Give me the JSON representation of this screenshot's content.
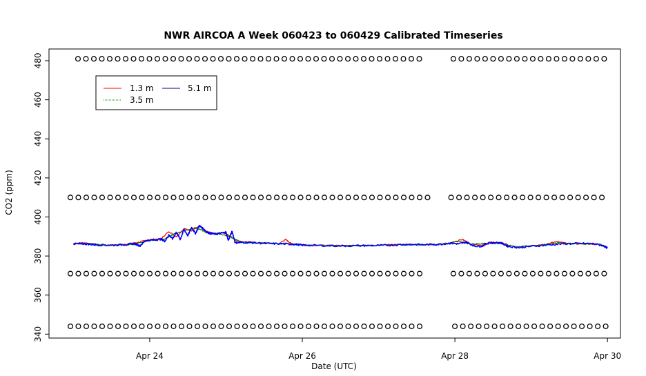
{
  "chart_data": {
    "type": "line",
    "title": "NWR AIRCOA A  Week 060423 to 060429  Calibrated Timeseries",
    "xlabel": "Date (UTC)",
    "ylabel": "CO2 (ppm)",
    "xlim_days": [
      22.68,
      30.17
    ],
    "ylim": [
      338,
      486
    ],
    "x_ticks": [
      {
        "label": "Apr 24",
        "day": 24
      },
      {
        "label": "Apr 26",
        "day": 26
      },
      {
        "label": "Apr 28",
        "day": 28
      },
      {
        "label": "Apr 30",
        "day": 30
      }
    ],
    "y_ticks": [
      340,
      360,
      380,
      400,
      420,
      440,
      460,
      480
    ],
    "grid": false,
    "legend": {
      "placement": "top-left",
      "entries": [
        {
          "label": "1.3 m",
          "color": "#ff0000"
        },
        {
          "label": "5.1 m",
          "color": "#00008b"
        },
        {
          "label": "3.5 m",
          "color": "#008000"
        }
      ]
    },
    "series": [
      {
        "name": "1.3 m",
        "color": "#ff0000",
        "points": [
          [
            23.0,
            386.5
          ],
          [
            23.15,
            386.8
          ],
          [
            23.3,
            385.9
          ],
          [
            23.5,
            385.6
          ],
          [
            23.7,
            386.2
          ],
          [
            23.85,
            387.0
          ],
          [
            24.0,
            388.4
          ],
          [
            24.15,
            388.9
          ],
          [
            24.25,
            392.5
          ],
          [
            24.35,
            390.0
          ],
          [
            24.45,
            394.0
          ],
          [
            24.55,
            393.0
          ],
          [
            24.65,
            395.2
          ],
          [
            24.75,
            392.5
          ],
          [
            24.85,
            391.5
          ],
          [
            24.95,
            392.0
          ],
          [
            25.05,
            390.5
          ],
          [
            25.15,
            387.5
          ],
          [
            25.3,
            387.2
          ],
          [
            25.5,
            386.5
          ],
          [
            25.7,
            386.4
          ],
          [
            25.78,
            388.5
          ],
          [
            25.85,
            386.5
          ],
          [
            26.0,
            385.6
          ],
          [
            26.3,
            385.4
          ],
          [
            26.6,
            385.3
          ],
          [
            26.9,
            385.4
          ],
          [
            27.1,
            385.8
          ],
          [
            27.3,
            386.0
          ],
          [
            27.5,
            385.9
          ],
          [
            27.7,
            385.8
          ],
          [
            27.9,
            386.4
          ],
          [
            28.1,
            388.5
          ],
          [
            28.2,
            386.3
          ],
          [
            28.35,
            385.5
          ],
          [
            28.45,
            387.0
          ],
          [
            28.6,
            386.8
          ],
          [
            28.8,
            384.5
          ],
          [
            29.0,
            385.2
          ],
          [
            29.2,
            386.2
          ],
          [
            29.35,
            387.5
          ],
          [
            29.5,
            386.2
          ],
          [
            29.7,
            386.3
          ],
          [
            29.9,
            386.0
          ],
          [
            30.0,
            384.3
          ]
        ]
      },
      {
        "name": "3.5 m",
        "color": "#008000",
        "points": [
          [
            23.0,
            386.3
          ],
          [
            23.2,
            386.4
          ],
          [
            23.4,
            385.7
          ],
          [
            23.6,
            385.5
          ],
          [
            23.8,
            386.0
          ],
          [
            24.0,
            388.0
          ],
          [
            24.2,
            388.8
          ],
          [
            24.3,
            391.0
          ],
          [
            24.45,
            393.0
          ],
          [
            24.6,
            394.5
          ],
          [
            24.75,
            392.0
          ],
          [
            24.9,
            391.5
          ],
          [
            25.05,
            390.0
          ],
          [
            25.2,
            387.0
          ],
          [
            25.4,
            386.8
          ],
          [
            25.6,
            386.4
          ],
          [
            25.8,
            386.5
          ],
          [
            26.0,
            385.6
          ],
          [
            26.4,
            385.3
          ],
          [
            26.8,
            385.3
          ],
          [
            27.2,
            385.7
          ],
          [
            27.5,
            385.8
          ],
          [
            27.8,
            385.9
          ],
          [
            28.05,
            387.5
          ],
          [
            28.2,
            386.0
          ],
          [
            28.4,
            386.5
          ],
          [
            28.6,
            386.5
          ],
          [
            28.8,
            384.6
          ],
          [
            29.1,
            385.5
          ],
          [
            29.35,
            386.8
          ],
          [
            29.6,
            386.2
          ],
          [
            29.9,
            386.0
          ],
          [
            30.0,
            384.3
          ]
        ]
      },
      {
        "name": "5.1 m",
        "color": "#0000ff",
        "points": [
          [
            23.0,
            386.2
          ],
          [
            23.1,
            386.3
          ],
          [
            23.2,
            386.1
          ],
          [
            23.3,
            385.7
          ],
          [
            23.5,
            385.5
          ],
          [
            23.7,
            385.9
          ],
          [
            23.8,
            386.4
          ],
          [
            23.87,
            385.2
          ],
          [
            23.95,
            388.0
          ],
          [
            24.05,
            388.2
          ],
          [
            24.15,
            388.6
          ],
          [
            24.2,
            387.6
          ],
          [
            24.25,
            390.8
          ],
          [
            24.3,
            388.8
          ],
          [
            24.35,
            392.2
          ],
          [
            24.4,
            388.5
          ],
          [
            24.45,
            393.6
          ],
          [
            24.5,
            390.5
          ],
          [
            24.55,
            394.6
          ],
          [
            24.6,
            391.5
          ],
          [
            24.65,
            395.6
          ],
          [
            24.7,
            394.0
          ],
          [
            24.75,
            392.2
          ],
          [
            24.8,
            391.5
          ],
          [
            24.87,
            391.2
          ],
          [
            24.95,
            391.8
          ],
          [
            25.0,
            392.2
          ],
          [
            25.03,
            388.0
          ],
          [
            25.08,
            392.6
          ],
          [
            25.12,
            386.8
          ],
          [
            25.2,
            387.0
          ],
          [
            25.35,
            386.8
          ],
          [
            25.55,
            386.4
          ],
          [
            25.75,
            386.2
          ],
          [
            25.9,
            386.0
          ],
          [
            26.0,
            385.6
          ],
          [
            26.2,
            385.4
          ],
          [
            26.5,
            385.2
          ],
          [
            26.8,
            385.3
          ],
          [
            27.0,
            385.4
          ],
          [
            27.2,
            385.6
          ],
          [
            27.4,
            386.0
          ],
          [
            27.6,
            385.8
          ],
          [
            27.8,
            386.0
          ],
          [
            27.95,
            386.6
          ],
          [
            28.05,
            386.2
          ],
          [
            28.15,
            387.2
          ],
          [
            28.25,
            385.2
          ],
          [
            28.35,
            385.0
          ],
          [
            28.45,
            386.8
          ],
          [
            28.6,
            386.8
          ],
          [
            28.7,
            384.9
          ],
          [
            28.85,
            384.3
          ],
          [
            29.0,
            385.0
          ],
          [
            29.2,
            385.6
          ],
          [
            29.4,
            386.2
          ],
          [
            29.6,
            386.4
          ],
          [
            29.8,
            386.4
          ],
          [
            29.95,
            385.2
          ],
          [
            30.0,
            384.0
          ]
        ]
      }
    ],
    "marker_rows": [
      {
        "value": 481,
        "segments": [
          [
            23.06,
            27.62
          ],
          [
            27.98,
            30.0
          ]
        ]
      },
      {
        "value": 410,
        "segments": [
          [
            22.96,
            27.64
          ],
          [
            27.95,
            30.0
          ]
        ]
      },
      {
        "value": 371,
        "segments": [
          [
            22.96,
            27.58
          ],
          [
            27.98,
            30.0
          ]
        ]
      },
      {
        "value": 344,
        "segments": [
          [
            22.96,
            27.58
          ],
          [
            28.0,
            30.0
          ]
        ]
      }
    ]
  }
}
